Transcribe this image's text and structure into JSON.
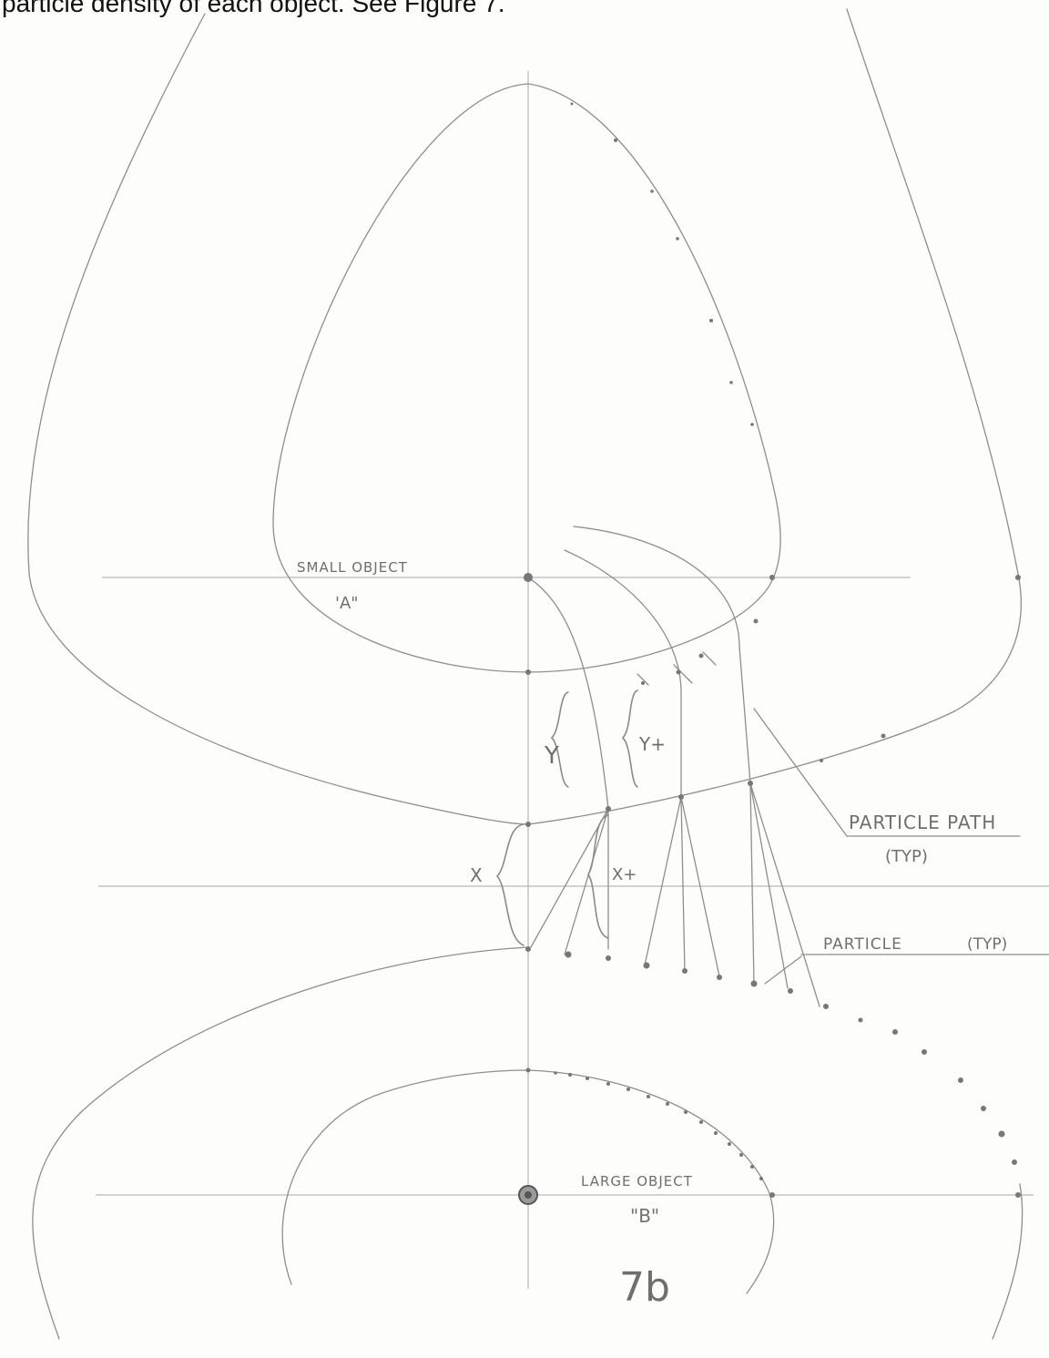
{
  "header": {
    "text": "particle density of each object. See Figure 7."
  },
  "labels": {
    "small_object_name": "SMALL OBJECT",
    "small_object_letter": "'A\"",
    "large_object_name": "LARGE OBJECT",
    "large_object_letter": "\"B\"",
    "particle_path": "PARTICLE PATH",
    "particle_path_typ": "(TYP)",
    "particle": "PARTICLE",
    "particle_typ": "(TYP)",
    "y": "Y",
    "y_plus": "Y+",
    "x": "X",
    "x_plus": "X+",
    "figure_number": "7b"
  },
  "colors": {
    "pencil": "#8e8e8e",
    "ink": "#111111"
  }
}
